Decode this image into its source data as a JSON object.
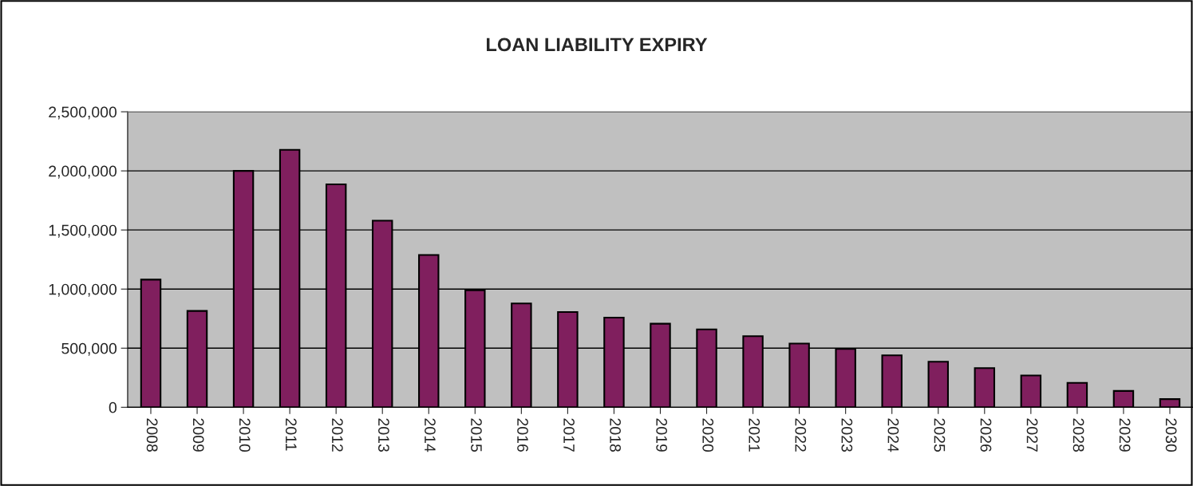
{
  "chart_data": {
    "type": "bar",
    "title": "LOAN LIABILITY EXPIRY",
    "categories": [
      "2008",
      "2009",
      "2010",
      "2011",
      "2012",
      "2013",
      "2014",
      "2015",
      "2016",
      "2017",
      "2018",
      "2019",
      "2020",
      "2021",
      "2022",
      "2023",
      "2024",
      "2025",
      "2026",
      "2027",
      "2028",
      "2029",
      "2030"
    ],
    "values": [
      1080000,
      815000,
      2000000,
      2178000,
      1886000,
      1579000,
      1288000,
      990000,
      878000,
      806000,
      758000,
      707000,
      659000,
      602000,
      539000,
      494000,
      440000,
      386000,
      332000,
      269000,
      207000,
      138000,
      69000
    ],
    "color": "#801f5e",
    "ylim": [
      0,
      2500000
    ],
    "yticks": [
      {
        "value": 0,
        "label": "0"
      },
      {
        "value": 500000,
        "label": "500,000"
      },
      {
        "value": 1000000,
        "label": "1,000,000"
      },
      {
        "value": 1500000,
        "label": "1,500,000"
      },
      {
        "value": 2000000,
        "label": "2,000,000"
      },
      {
        "value": 2500000,
        "label": "2,500,000"
      }
    ],
    "grid": "y",
    "legend": false
  }
}
